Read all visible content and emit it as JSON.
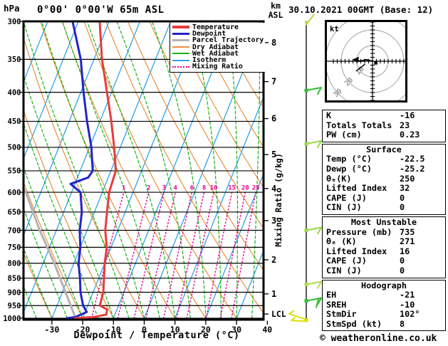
{
  "header": {
    "pressure_unit": "hPa",
    "left_title": "0°00' 0°00'W 65m ASL",
    "altitude_unit_line1": "km",
    "altitude_unit_line2": "ASL",
    "right_title": "30.10.2021 00GMT (Base: 12)"
  },
  "legend": {
    "items": [
      {
        "label": "Temperature",
        "color": "#e83c3c",
        "thick": true,
        "style": "solid"
      },
      {
        "label": "Dewpoint",
        "color": "#2323cc",
        "thick": true,
        "style": "solid"
      },
      {
        "label": "Parcel Trajectory",
        "color": "#b2b2b2",
        "thick": true,
        "style": "solid"
      },
      {
        "label": "Dry Adiabat",
        "color": "#e8913c",
        "thick": false,
        "style": "solid"
      },
      {
        "label": "Wet Adiabat",
        "color": "#17b317",
        "thick": false,
        "style": "solid"
      },
      {
        "label": "Isotherm",
        "color": "#31a3e8",
        "thick": false,
        "style": "solid"
      },
      {
        "label": "Mixing Ratio",
        "color": "#e8008c",
        "thick": false,
        "style": "dotted"
      }
    ]
  },
  "axes": {
    "pressure_ticks": [
      300,
      350,
      400,
      450,
      500,
      550,
      600,
      650,
      700,
      750,
      800,
      850,
      900,
      950,
      1000
    ],
    "temp_ticks": [
      -30,
      -20,
      -10,
      0,
      10,
      20,
      30,
      40
    ],
    "x_label": "Dewpoint / Temperature (°C)",
    "km_ticks": [
      {
        "km": 8,
        "pressure": 327
      },
      {
        "km": 7,
        "pressure": 383
      },
      {
        "km": 6,
        "pressure": 445
      },
      {
        "km": 5,
        "pressure": 515
      },
      {
        "km": 4,
        "pressure": 591
      },
      {
        "km": 3,
        "pressure": 673
      },
      {
        "km": 2,
        "pressure": 789
      },
      {
        "km": 1,
        "pressure": 906
      }
    ],
    "lcl": {
      "label": "LCL",
      "pressure": 983
    },
    "mixing_ratio_axis_label": "Mixing Ratio (g/kg)"
  },
  "chart_data": {
    "type": "skewt-logp",
    "pressure_range_hpa": [
      300,
      1000
    ],
    "surface_temp_axis_range_c": [
      -40,
      40
    ],
    "series": [
      {
        "name": "Temperature",
        "color": "#e83c3c",
        "width": 3,
        "points": [
          [
            300,
            -53.1
          ],
          [
            350,
            -47.4
          ],
          [
            400,
            -41.5
          ],
          [
            450,
            -36.3
          ],
          [
            500,
            -32.0
          ],
          [
            550,
            -28.4
          ],
          [
            600,
            -27.8
          ],
          [
            650,
            -25.9
          ],
          [
            700,
            -24.1
          ],
          [
            750,
            -21.4
          ],
          [
            800,
            -20.0
          ],
          [
            850,
            -18.3
          ],
          [
            900,
            -16.7
          ],
          [
            950,
            -16.1
          ],
          [
            965,
            -13.2
          ],
          [
            985,
            -12.8
          ],
          [
            995,
            -16.5
          ],
          [
            1000,
            -22.5
          ]
        ]
      },
      {
        "name": "Dewpoint",
        "color": "#2323cc",
        "width": 3,
        "points": [
          [
            300,
            -61.9
          ],
          [
            350,
            -54.3
          ],
          [
            400,
            -49.1
          ],
          [
            450,
            -44.2
          ],
          [
            500,
            -39.4
          ],
          [
            550,
            -35.9
          ],
          [
            565,
            -36.5
          ],
          [
            580,
            -41.4
          ],
          [
            600,
            -37.1
          ],
          [
            650,
            -34.1
          ],
          [
            700,
            -32.4
          ],
          [
            750,
            -30.0
          ],
          [
            800,
            -28.5
          ],
          [
            850,
            -26.1
          ],
          [
            900,
            -24.1
          ],
          [
            950,
            -21.5
          ],
          [
            975,
            -19.5
          ],
          [
            995,
            -22.5
          ],
          [
            1000,
            -25.2
          ]
        ]
      },
      {
        "name": "Parcel Trajectory",
        "color": "#b2b2b2",
        "width": 3,
        "points": [
          [
            580,
            -57.5
          ],
          [
            600,
            -54.9
          ],
          [
            700,
            -45.4
          ],
          [
            800,
            -36.4
          ],
          [
            1000,
            -22.3
          ]
        ]
      }
    ],
    "background": {
      "isotherms_c": {
        "min": -80,
        "max": 40,
        "step": 10
      },
      "dry_adiabats_theta_c": {
        "min": -40,
        "max": 130,
        "step": 10
      },
      "wet_adiabats_start_c": {
        "min": -70,
        "max": 40,
        "step": 5
      },
      "mixing_ratio_gkg": [
        1,
        2,
        3,
        4,
        6,
        8,
        10,
        15,
        20,
        25
      ],
      "mixing_ratio_top_hpa": 600
    }
  },
  "wind_barbs": {
    "items": [
      {
        "pressure": 302,
        "color": "#b6d943",
        "shape": "half-up"
      },
      {
        "pressure": 397,
        "color": "#2fbe2f",
        "shape": "right"
      },
      {
        "pressure": 493,
        "color": "#9ad944",
        "shape": "right"
      },
      {
        "pressure": 700,
        "color": "#9ad944",
        "shape": "right"
      },
      {
        "pressure": 872,
        "color": "#b4dc4e",
        "shape": "right"
      },
      {
        "pressure": 932,
        "color": "#2fbe2f",
        "shape": "right-flick"
      },
      {
        "pressure": 1008,
        "color": "#dede00",
        "shape": "left-double"
      }
    ]
  },
  "hodograph": {
    "unit_label": "kt",
    "rings_kt": [
      10,
      20,
      30
    ],
    "ring_labels": [
      "10",
      "20",
      "30"
    ],
    "trace_points_kt": [
      [
        0,
        0
      ],
      [
        -4,
        1
      ],
      [
        -8,
        0
      ],
      [
        -11,
        1
      ]
    ],
    "tail_points_kt": [
      [
        -5,
        -2
      ],
      [
        -10,
        -6
      ]
    ],
    "storm_marker_kt": [
      2,
      -1
    ],
    "stm_dir_deg": 102,
    "stm_spd_kt": 8
  },
  "table": {
    "sections": [
      {
        "title": "",
        "rows": [
          [
            "K",
            "-16"
          ],
          [
            "Totals Totals",
            "23"
          ],
          [
            "PW (cm)",
            "0.23"
          ]
        ]
      },
      {
        "title": "Surface",
        "rows": [
          [
            "Temp (°C)",
            "-22.5"
          ],
          [
            "Dewp (°C)",
            "-25.2"
          ],
          [
            "θₑ(K)",
            "250"
          ],
          [
            "Lifted Index",
            "32"
          ],
          [
            "CAPE (J)",
            "0"
          ],
          [
            "CIN (J)",
            "0"
          ]
        ]
      },
      {
        "title": "Most Unstable",
        "rows": [
          [
            "Pressure (mb)",
            "735"
          ],
          [
            "θₑ (K)",
            "271"
          ],
          [
            "Lifted Index",
            "16"
          ],
          [
            "CAPE (J)",
            "0"
          ],
          [
            "CIN (J)",
            "0"
          ]
        ]
      },
      {
        "title": "Hodograph",
        "rows": [
          [
            "EH",
            "-21"
          ],
          [
            "SREH",
            "-10"
          ],
          [
            "StmDir",
            "102°"
          ],
          [
            "StmSpd (kt)",
            "8"
          ]
        ]
      }
    ]
  },
  "footer": {
    "copyright": "© weatheronline.co.uk"
  }
}
